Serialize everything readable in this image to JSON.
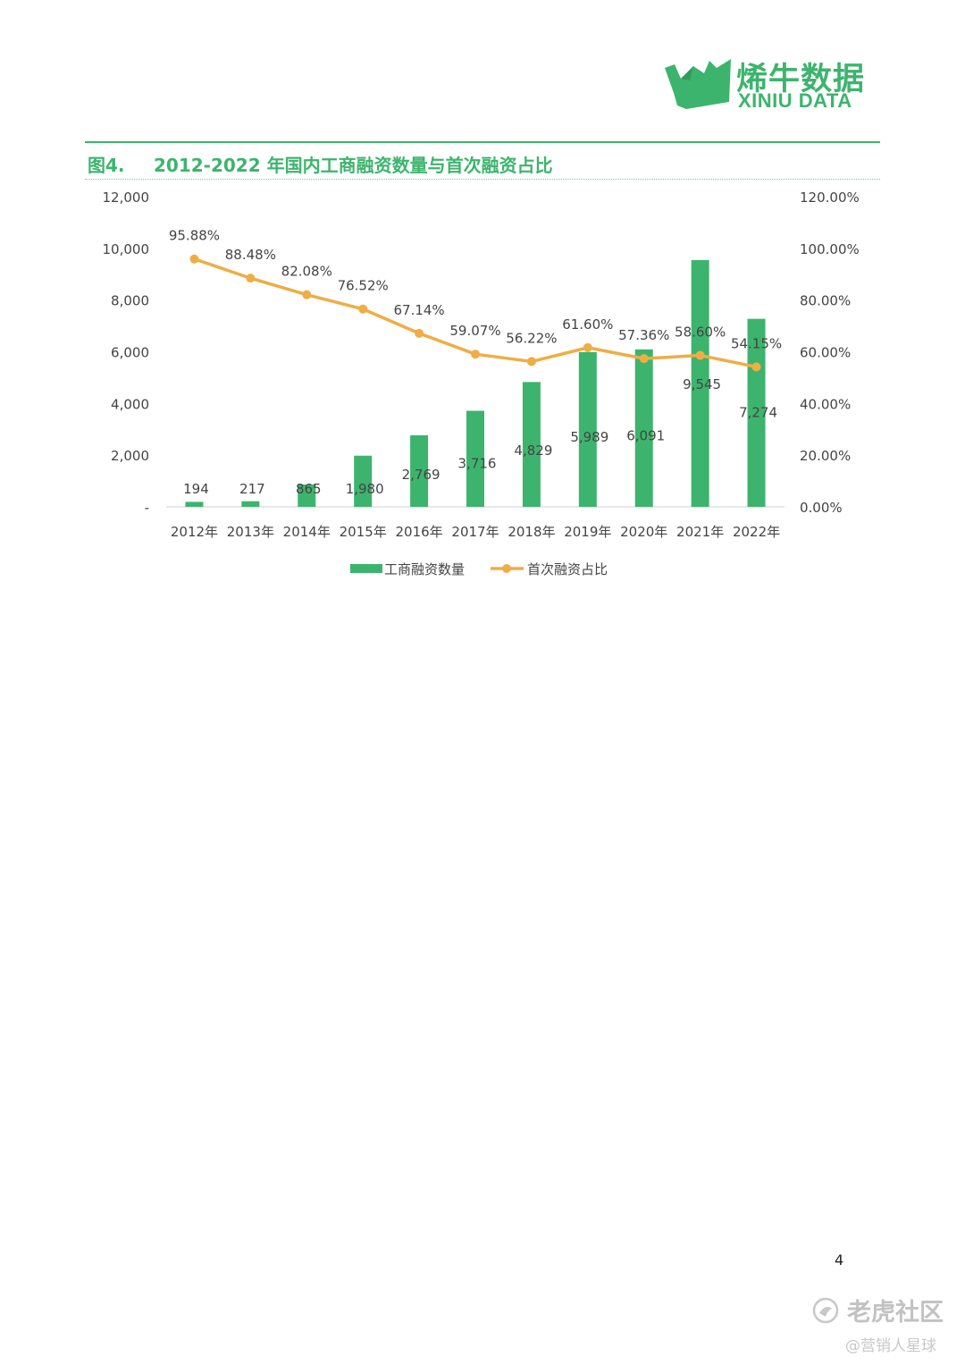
{
  "brand": {
    "name_cn": "烯牛数据",
    "name_en": "XINIU DATA",
    "color": "#3db46d",
    "icon": "rhino-logo-icon"
  },
  "figure": {
    "number": "图4.",
    "title": "2012-2022 年国内工商融资数量与首次融资占比"
  },
  "chart_data": {
    "type": "bar",
    "categories": [
      "2012年",
      "2013年",
      "2014年",
      "2015年",
      "2016年",
      "2017年",
      "2018年",
      "2019年",
      "2020年",
      "2021年",
      "2022年"
    ],
    "series": [
      {
        "name": "工商融资数量",
        "type": "bar",
        "axis": "left",
        "color": "#3db46d",
        "values": [
          194,
          217,
          865,
          1980,
          2769,
          3716,
          4829,
          5989,
          6091,
          9545,
          7274
        ],
        "labels": [
          "194",
          "217",
          "865",
          "1,980",
          "2,769",
          "3,716",
          "4,829",
          "5,989",
          "6,091",
          "9,545",
          "7,274"
        ]
      },
      {
        "name": "首次融资占比",
        "type": "line",
        "axis": "right",
        "color": "#f0ad44",
        "values": [
          95.88,
          88.48,
          82.08,
          76.52,
          67.14,
          59.07,
          56.22,
          61.6,
          57.36,
          58.6,
          54.15
        ],
        "labels": [
          "95.88%",
          "88.48%",
          "82.08%",
          "76.52%",
          "67.14%",
          "59.07%",
          "56.22%",
          "61.60%",
          "57.36%",
          "58.60%",
          "54.15%"
        ]
      }
    ],
    "y_left": {
      "ylim": [
        0,
        12000
      ],
      "ticks": [
        "-",
        "2,000",
        "4,000",
        "6,000",
        "8,000",
        "10,000",
        "12,000"
      ]
    },
    "y_right": {
      "ylim": [
        0,
        120
      ],
      "ticks": [
        "0.00%",
        "20.00%",
        "40.00%",
        "60.00%",
        "80.00%",
        "100.00%",
        "120.00%"
      ]
    },
    "grid": false,
    "legend": "bottom-center"
  },
  "page": {
    "number": "4"
  },
  "watermark": {
    "main": "老虎社区",
    "sub": "@营销人星球",
    "icon": "tiger-community-icon"
  }
}
